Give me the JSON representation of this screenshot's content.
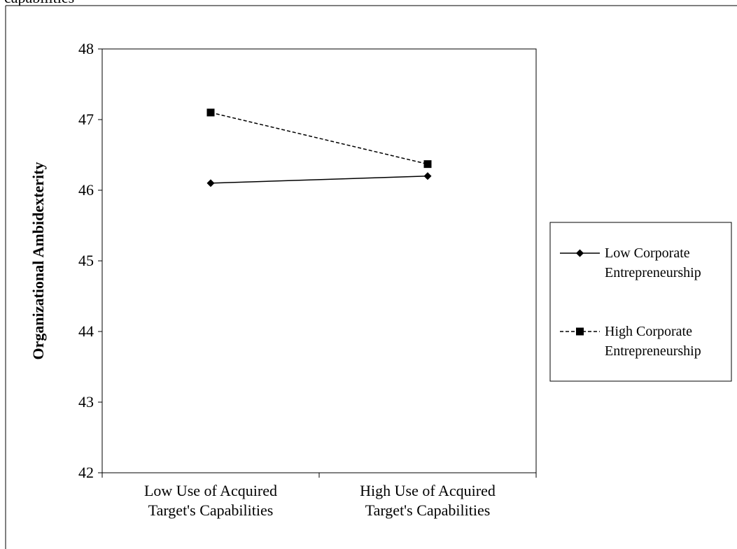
{
  "header_fragment": "capabilities",
  "chart_data": {
    "type": "line",
    "title": "",
    "xlabel": "",
    "ylabel": "Organizational Ambidexterity",
    "ylim": [
      42,
      48
    ],
    "yticks": [
      42,
      43,
      44,
      45,
      46,
      47,
      48
    ],
    "grid": false,
    "legend_position": "right",
    "categories": [
      [
        "Low Use of Acquired",
        "Target's Capabilities"
      ],
      [
        "High Use of Acquired",
        "Target's Capabilities"
      ]
    ],
    "series": [
      {
        "name": [
          "Low Corporate",
          "Entrepreneurship"
        ],
        "values": [
          46.1,
          46.2
        ],
        "line_style": "solid",
        "marker": "diamond",
        "color": "#000000"
      },
      {
        "name": [
          "High Corporate",
          "Entrepreneurship"
        ],
        "values": [
          47.1,
          46.37
        ],
        "line_style": "dashed",
        "marker": "square",
        "color": "#000000"
      }
    ]
  }
}
